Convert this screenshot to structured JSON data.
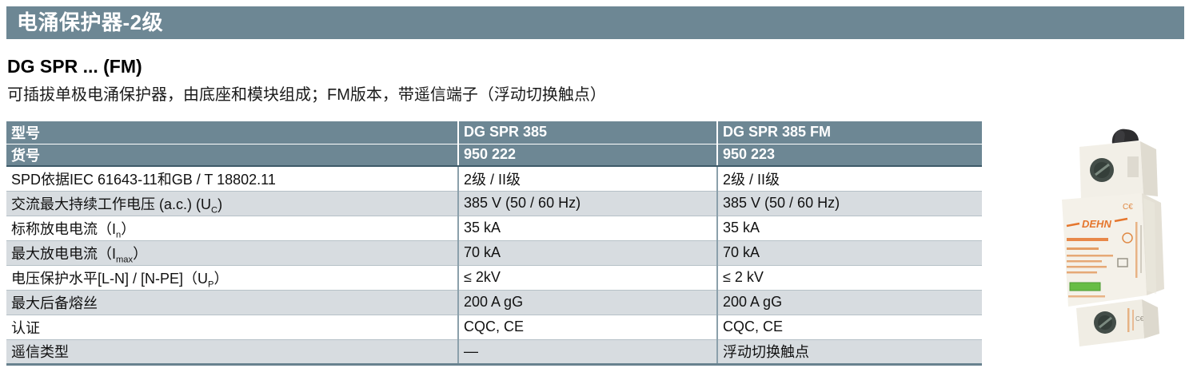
{
  "page": {
    "section_title": "电涌保护器-2级",
    "product_title": "DG SPR ... (FM)",
    "description": "可插拔单极电涌保护器，由底座和模块组成；FM版本，带遥信端子（浮动切换触点）"
  },
  "colors": {
    "section_header_bg": "#6d8794",
    "table_header_bg": "#6d8794",
    "row_alt_bg": "#d7dce0",
    "table_border_dark": "#3d5a68",
    "product_accent_orange": "#e5762d",
    "product_indicator_green": "#67bd45"
  },
  "table": {
    "model_row": {
      "label": "型号",
      "col1": "DG SPR 385",
      "col2": "DG SPR 385 FM"
    },
    "article_row": {
      "label": "货号",
      "col1": "950 222",
      "col2": "950 223"
    },
    "rows": [
      {
        "label_segments": [
          {
            "t": "SPD依据IEC 61643-11和GB / T 18802.11"
          }
        ],
        "v1": "2级 / II级",
        "v2": "2级 / II级"
      },
      {
        "label_segments": [
          {
            "t": "交流最大持续工作电压 (a.c.) (U"
          },
          {
            "t": "C",
            "sub": true
          },
          {
            "t": ")"
          }
        ],
        "v1": "385 V (50 / 60 Hz)",
        "v2": "385 V (50 / 60 Hz)"
      },
      {
        "label_segments": [
          {
            "t": "标称放电电流（I"
          },
          {
            "t": "n",
            "sub": true
          },
          {
            "t": "）"
          }
        ],
        "v1": "35 kA",
        "v2": "35 kA"
      },
      {
        "label_segments": [
          {
            "t": "最大放电电流（I"
          },
          {
            "t": "max",
            "sub": true
          },
          {
            "t": "）"
          }
        ],
        "v1": "70 kA",
        "v2": "70 kA"
      },
      {
        "label_segments": [
          {
            "t": "电压保护水平[L-N] / [N-PE]（U"
          },
          {
            "t": "P",
            "sub": true
          },
          {
            "t": "）"
          }
        ],
        "v1": "≤ 2kV",
        "v2": "≤ 2 kV"
      },
      {
        "label_segments": [
          {
            "t": "最大后备熔丝"
          }
        ],
        "v1": "200 A gG",
        "v2": "200 A gG"
      },
      {
        "label_segments": [
          {
            "t": "认证"
          }
        ],
        "v1": "CQC, CE",
        "v2": "CQC, CE"
      },
      {
        "label_segments": [
          {
            "t": "遥信类型"
          }
        ],
        "v1": "—",
        "v2": "浮动切换触点"
      }
    ]
  },
  "product_image": {
    "brand": "DEHN"
  }
}
